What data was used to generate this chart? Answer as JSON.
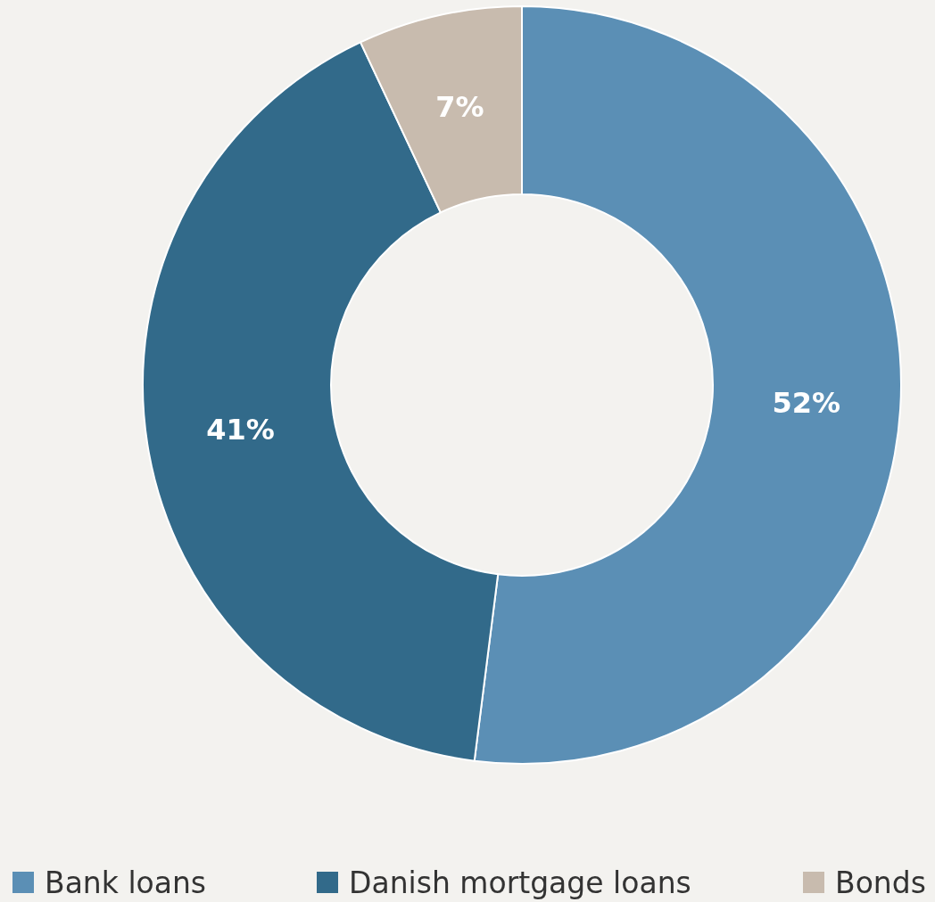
{
  "chart_data": {
    "type": "donut",
    "categories": [
      "Bank loans",
      "Danish mortgage loans",
      "Bonds"
    ],
    "values": [
      52,
      41,
      7
    ],
    "colors": [
      "#5b8fb5",
      "#326a8a",
      "#c8bbae"
    ],
    "value_labels": [
      "52%",
      "41%",
      "7%"
    ],
    "legend": "bottom"
  }
}
